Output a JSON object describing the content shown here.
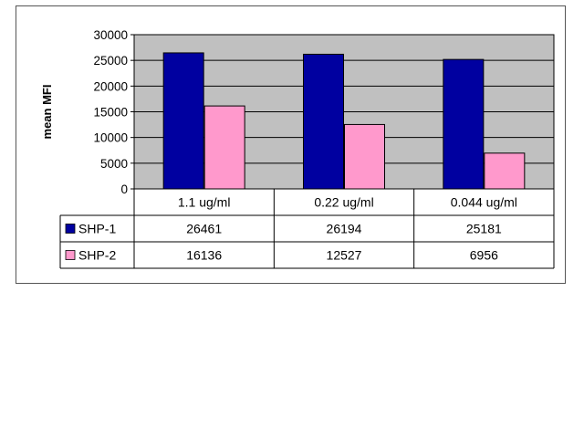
{
  "chart_data": {
    "type": "bar",
    "ylabel": "mean MFI",
    "ylim": [
      0,
      30000
    ],
    "yticks": [
      "0",
      "5000",
      "10000",
      "15000",
      "20000",
      "25000",
      "30000"
    ],
    "grid": true,
    "legend": "data-table",
    "categories": [
      "1.1 ug/ml",
      "0.22 ug/ml",
      "0.044 ug/ml"
    ],
    "series": [
      {
        "name": "SHP-1",
        "color": "#0000a0",
        "values": [
          26461,
          26194,
          25181
        ]
      },
      {
        "name": "SHP-2",
        "color": "#ff99cc",
        "values": [
          16136,
          12527,
          6956
        ]
      }
    ],
    "plot_background": "#c0c0c0"
  }
}
